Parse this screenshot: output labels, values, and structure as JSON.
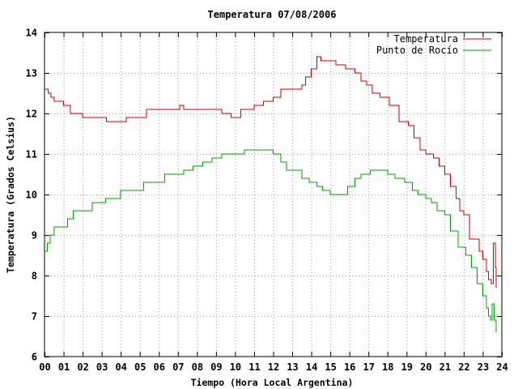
{
  "chart_data": {
    "type": "line",
    "title": "Temperatura 07/08/2006",
    "xlabel": "Tiempo (Hora Local Argentina)",
    "ylabel": "Temperatura (Grados Celsius)",
    "xlim": [
      0,
      24
    ],
    "ylim": [
      6,
      14
    ],
    "grid": true,
    "legend_position": "top-right",
    "x_tick_labels": [
      "00",
      "01",
      "02",
      "03",
      "04",
      "05",
      "06",
      "07",
      "08",
      "09",
      "10",
      "11",
      "12",
      "13",
      "14",
      "15",
      "16",
      "17",
      "18",
      "19",
      "20",
      "21",
      "22",
      "23",
      "24"
    ],
    "y_tick_labels": [
      "6",
      "7",
      "8",
      "9",
      "10",
      "11",
      "12",
      "13",
      "14"
    ],
    "series": [
      {
        "name": "Temperatura",
        "color": "#cc0000",
        "x": [
          0,
          0.2,
          0.35,
          0.5,
          1.0,
          1.35,
          2.0,
          3.25,
          4.3,
          5.35,
          7.1,
          7.3,
          8.2,
          9.3,
          9.8,
          10.3,
          11.0,
          11.5,
          12.0,
          12.4,
          12.7,
          13.0,
          13.5,
          13.7,
          14.0,
          14.3,
          14.5,
          15.3,
          15.8,
          16.3,
          16.6,
          16.9,
          17.2,
          17.6,
          18.1,
          18.6,
          19.1,
          19.4,
          19.7,
          20.0,
          20.4,
          20.7,
          21.0,
          21.3,
          21.6,
          21.8,
          22.0,
          22.3,
          22.8,
          23.0,
          23.2,
          23.3,
          23.45,
          23.55,
          23.65,
          23.7
        ],
        "y": [
          12.6,
          12.5,
          12.4,
          12.3,
          12.2,
          12.0,
          11.9,
          11.8,
          11.9,
          12.1,
          12.2,
          12.1,
          12.1,
          12.0,
          11.9,
          12.1,
          12.2,
          12.3,
          12.4,
          12.6,
          12.6,
          12.6,
          12.7,
          12.9,
          13.1,
          13.4,
          13.3,
          13.2,
          13.1,
          13.0,
          12.8,
          12.7,
          12.5,
          12.4,
          12.2,
          11.8,
          11.7,
          11.4,
          11.1,
          11.0,
          10.9,
          10.7,
          10.5,
          10.2,
          9.9,
          9.6,
          9.5,
          8.9,
          8.6,
          8.4,
          8.1,
          7.9,
          7.8,
          8.8,
          8.2,
          7.7
        ]
      },
      {
        "name": "Punto de Rocío",
        "color": "#00a000",
        "x": [
          0,
          0.15,
          0.3,
          0.5,
          0.7,
          1.2,
          1.5,
          2.0,
          2.5,
          3.2,
          4.0,
          5.2,
          6.3,
          7.3,
          7.8,
          8.3,
          8.8,
          9.3,
          10.0,
          10.5,
          11.0,
          11.5,
          12.0,
          12.4,
          12.7,
          13.2,
          13.5,
          13.9,
          14.3,
          14.6,
          15.0,
          15.3,
          15.9,
          16.3,
          16.6,
          17.1,
          17.5,
          18.0,
          18.4,
          18.9,
          19.3,
          19.6,
          20.0,
          20.3,
          20.6,
          21.0,
          21.3,
          21.7,
          22.1,
          22.4,
          22.7,
          23.0,
          23.2,
          23.3,
          23.4,
          23.5,
          23.6,
          23.7
        ],
        "y": [
          8.6,
          8.8,
          9.0,
          9.2,
          9.2,
          9.4,
          9.6,
          9.6,
          9.8,
          9.9,
          10.1,
          10.3,
          10.5,
          10.6,
          10.7,
          10.8,
          10.9,
          11.0,
          11.0,
          11.1,
          11.1,
          11.1,
          11.0,
          10.8,
          10.6,
          10.6,
          10.4,
          10.3,
          10.2,
          10.1,
          10.0,
          10.0,
          10.2,
          10.4,
          10.5,
          10.6,
          10.6,
          10.5,
          10.4,
          10.3,
          10.1,
          10.0,
          9.9,
          9.8,
          9.6,
          9.5,
          9.1,
          8.7,
          8.5,
          8.2,
          7.8,
          7.5,
          7.2,
          7.0,
          6.9,
          7.3,
          6.9,
          6.6
        ]
      }
    ]
  }
}
